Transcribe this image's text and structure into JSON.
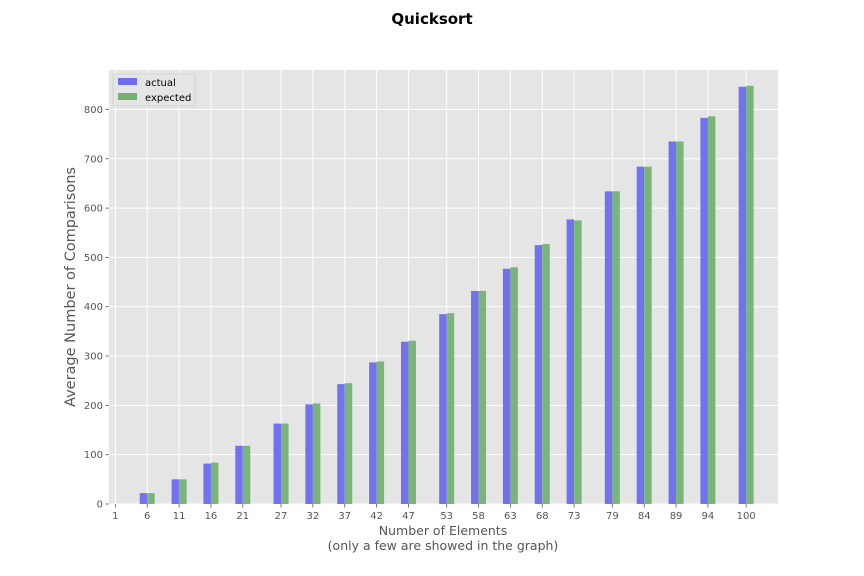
{
  "chart_data": {
    "type": "bar",
    "title": "Quicksort",
    "xlabel_lines": [
      "Number of Elements",
      "(only a few are showed in the graph)"
    ],
    "ylabel": "Average Number of Comparisons",
    "x_ticks": [
      1,
      6,
      11,
      16,
      21,
      27,
      32,
      37,
      42,
      47,
      53,
      58,
      63,
      68,
      73,
      79,
      84,
      89,
      94,
      100
    ],
    "y_ticks": [
      0,
      100,
      200,
      300,
      400,
      500,
      600,
      700,
      800
    ],
    "ylim": [
      0,
      880
    ],
    "xlim": [
      0,
      105
    ],
    "grid": true,
    "legend_position": "top-left",
    "categories": [
      6,
      11,
      16,
      21,
      27,
      32,
      37,
      42,
      47,
      53,
      58,
      63,
      68,
      73,
      79,
      84,
      89,
      94,
      100
    ],
    "series": [
      {
        "name": "actual",
        "color": "#6b6bef",
        "values": [
          22,
          50,
          82,
          118,
          163,
          202,
          243,
          287,
          329,
          385,
          432,
          477,
          525,
          577,
          634,
          684,
          735,
          783,
          846
        ]
      },
      {
        "name": "expected",
        "color": "#73b273",
        "values": [
          22,
          50,
          84,
          118,
          163,
          204,
          245,
          289,
          331,
          387,
          432,
          480,
          527,
          575,
          634,
          684,
          735,
          786,
          848
        ]
      }
    ]
  }
}
